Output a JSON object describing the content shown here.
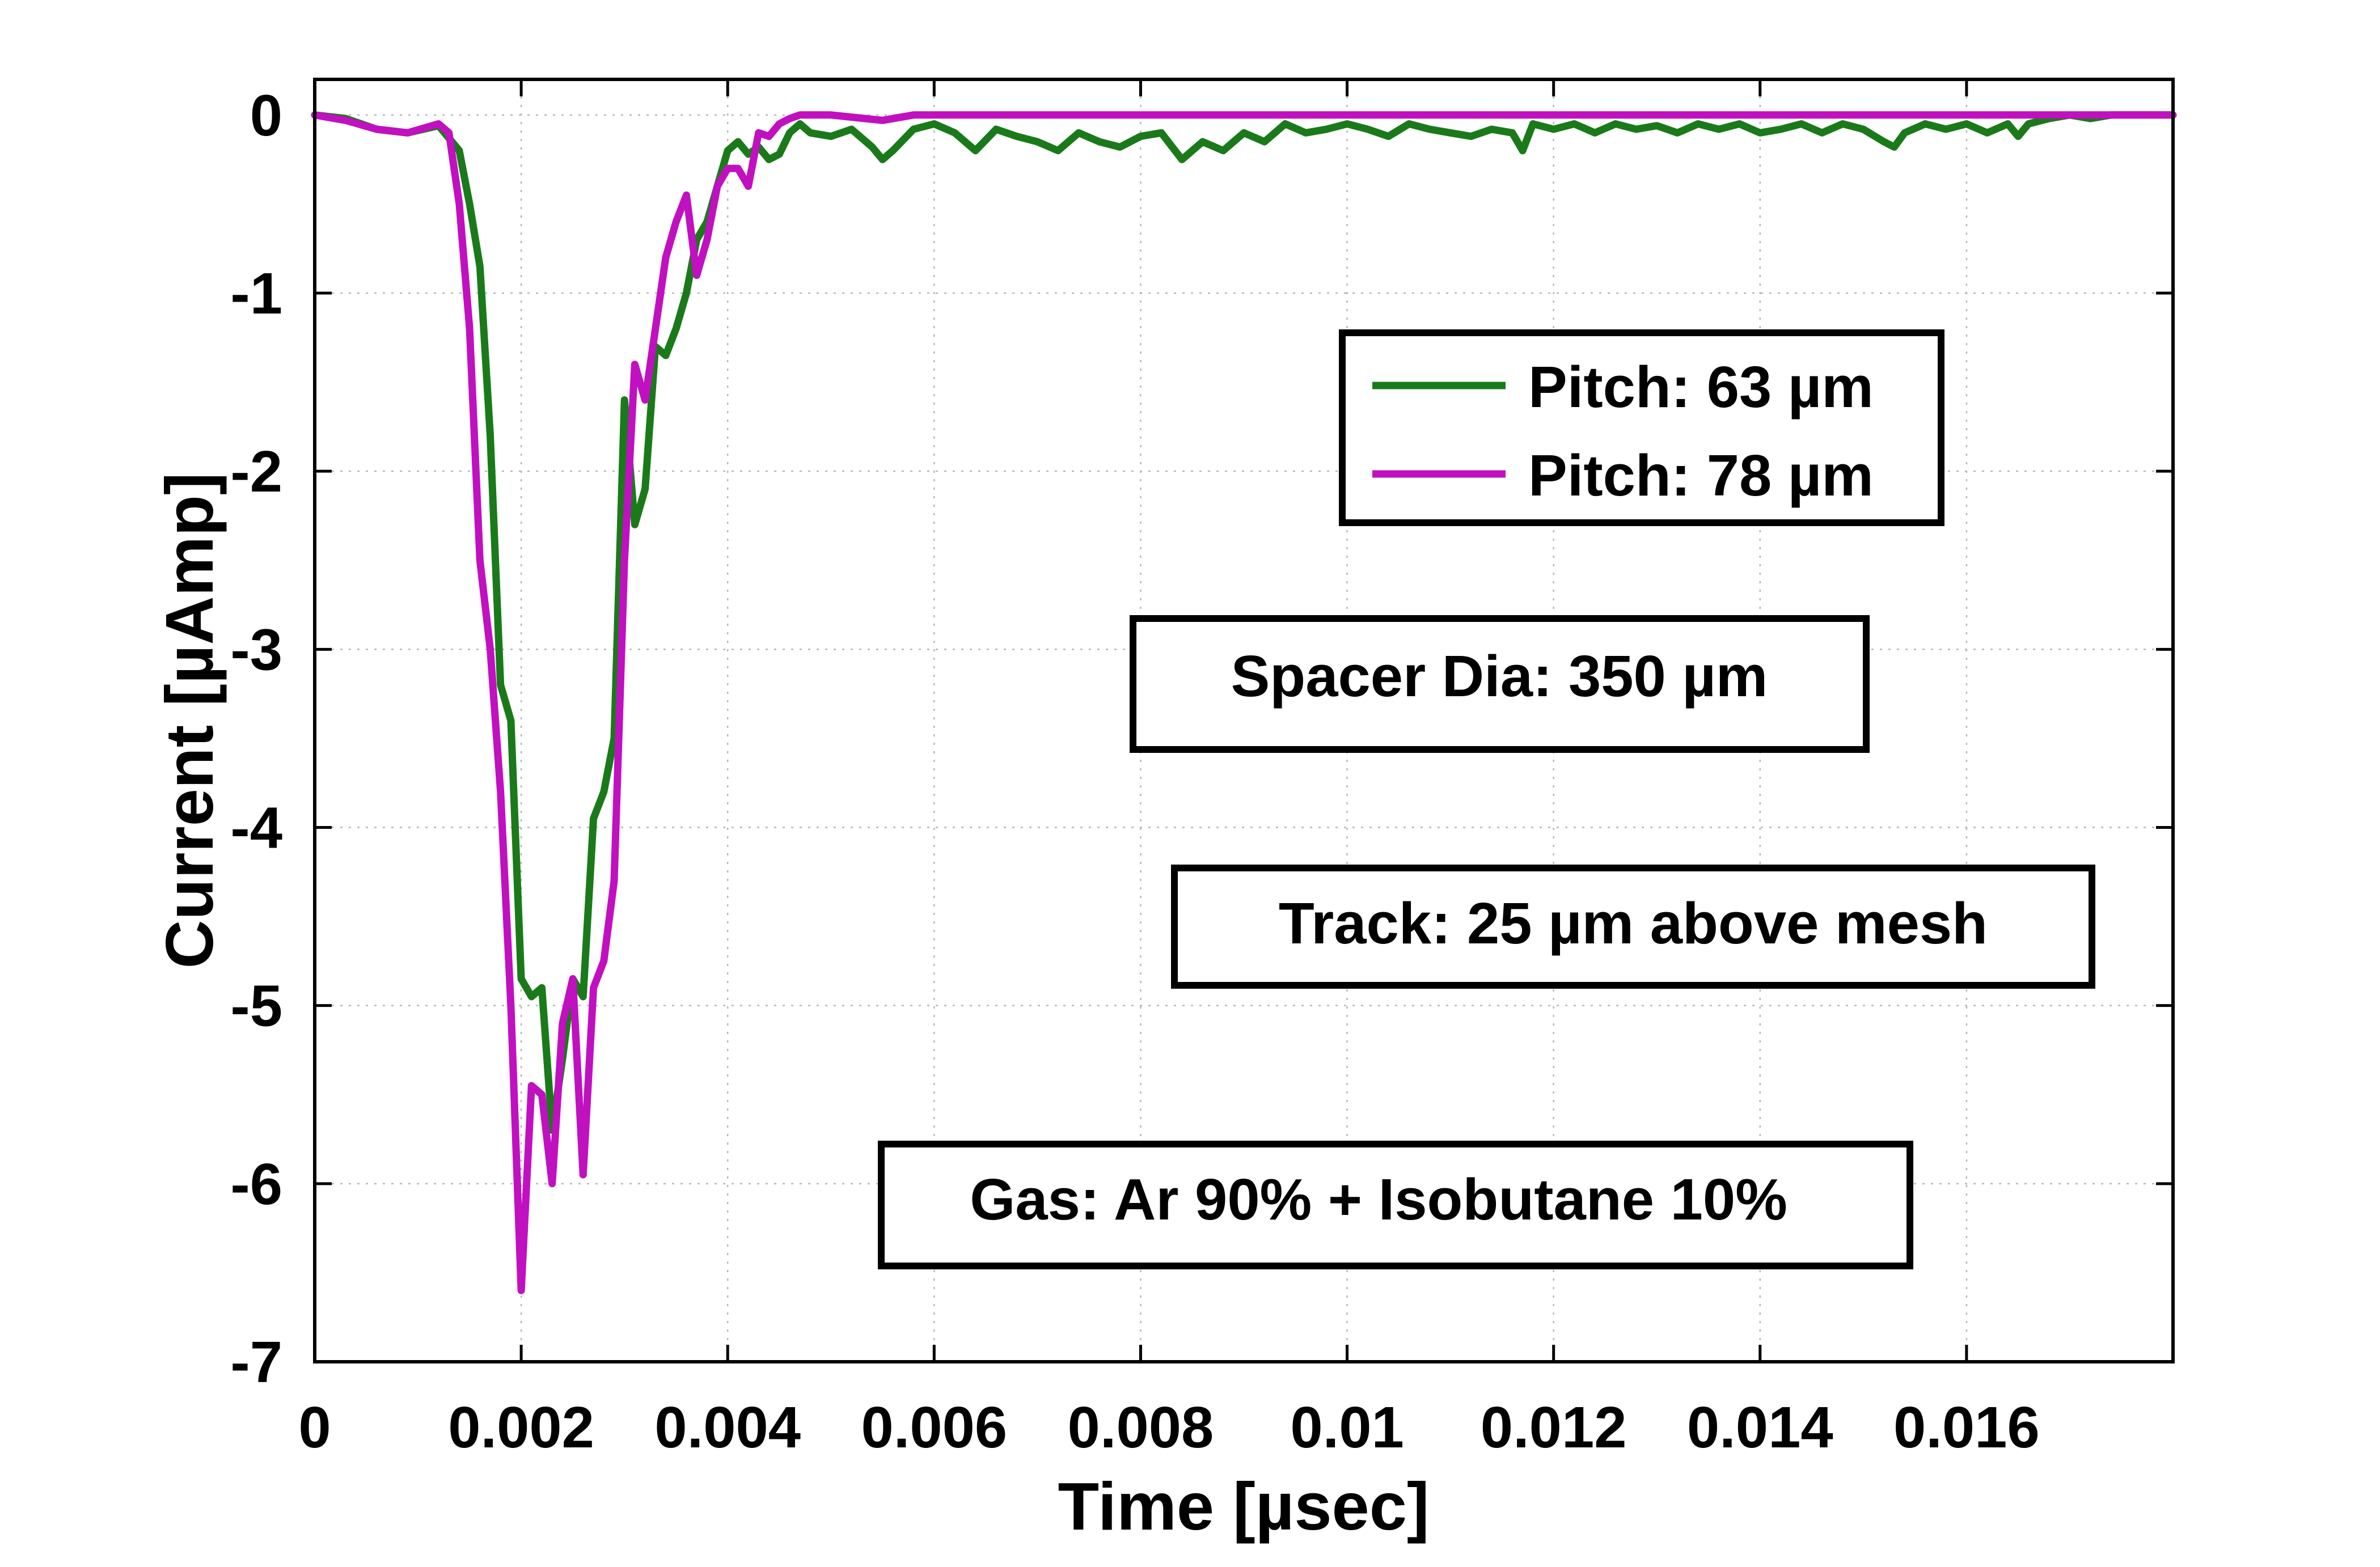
{
  "chart_data": {
    "type": "line",
    "title": "",
    "xlabel": "Time [µsec]",
    "ylabel": "Current [µAmp]",
    "xlim": [
      0,
      0.018
    ],
    "ylim": [
      -7,
      0.2
    ],
    "xticks": [
      0,
      0.002,
      0.004,
      0.006,
      0.008,
      0.01,
      0.012,
      0.014,
      0.016
    ],
    "xtick_labels": [
      "0",
      "0.002",
      "0.004",
      "0.006",
      "0.008",
      "0.01",
      "0.012",
      "0.014",
      "0.016"
    ],
    "yticks": [
      0,
      -1,
      -2,
      -3,
      -4,
      -5,
      -6,
      -7
    ],
    "ytick_labels": [
      "0",
      "-1",
      "-2",
      "-3",
      "-4",
      "-5",
      "-6",
      "-7"
    ],
    "grid": true,
    "legend_position": "upper-right",
    "series": [
      {
        "name": "Pitch: 63 µm",
        "color": "#1a7a1a",
        "x": [
          0,
          0.0003,
          0.0006,
          0.0009,
          0.0012,
          0.0014,
          0.0015,
          0.0016,
          0.0017,
          0.0018,
          0.0019,
          0.002,
          0.0021,
          0.0022,
          0.0023,
          0.0024,
          0.0025,
          0.0026,
          0.0027,
          0.0028,
          0.0029,
          0.003,
          0.0031,
          0.0032,
          0.0033,
          0.0034,
          0.0035,
          0.0036,
          0.0037,
          0.0038,
          0.0039,
          0.004,
          0.0041,
          0.0042,
          0.0043,
          0.0044,
          0.0045,
          0.0046,
          0.0047,
          0.0048,
          0.005,
          0.0052,
          0.0054,
          0.0055,
          0.0056,
          0.0058,
          0.006,
          0.0062,
          0.0064,
          0.0066,
          0.0068,
          0.007,
          0.0072,
          0.0074,
          0.0076,
          0.0078,
          0.008,
          0.0082,
          0.0084,
          0.0086,
          0.0088,
          0.009,
          0.0092,
          0.0094,
          0.0096,
          0.0098,
          0.01,
          0.0102,
          0.0104,
          0.0106,
          0.0108,
          0.011,
          0.0112,
          0.0114,
          0.0116,
          0.0117,
          0.0118,
          0.012,
          0.0122,
          0.0124,
          0.0126,
          0.0128,
          0.013,
          0.0132,
          0.0134,
          0.0136,
          0.0138,
          0.014,
          0.0142,
          0.0144,
          0.0146,
          0.0148,
          0.015,
          0.0152,
          0.0153,
          0.0154,
          0.0156,
          0.0158,
          0.016,
          0.0162,
          0.0164,
          0.0165,
          0.0166,
          0.0168,
          0.017,
          0.0172,
          0.0174,
          0.0176,
          0.0178,
          0.018
        ],
        "y": [
          0,
          -0.02,
          -0.08,
          -0.1,
          -0.06,
          -0.2,
          -0.5,
          -0.85,
          -1.8,
          -3.2,
          -3.4,
          -4.85,
          -4.95,
          -4.9,
          -5.7,
          -5.3,
          -4.85,
          -4.95,
          -3.95,
          -3.8,
          -3.5,
          -1.6,
          -2.3,
          -2.1,
          -1.3,
          -1.35,
          -1.2,
          -1.0,
          -0.7,
          -0.6,
          -0.4,
          -0.2,
          -0.15,
          -0.22,
          -0.18,
          -0.25,
          -0.22,
          -0.1,
          -0.05,
          -0.1,
          -0.12,
          -0.08,
          -0.18,
          -0.25,
          -0.2,
          -0.08,
          -0.05,
          -0.1,
          -0.2,
          -0.08,
          -0.12,
          -0.15,
          -0.2,
          -0.1,
          -0.15,
          -0.18,
          -0.12,
          -0.1,
          -0.25,
          -0.15,
          -0.2,
          -0.1,
          -0.15,
          -0.05,
          -0.1,
          -0.08,
          -0.05,
          -0.08,
          -0.12,
          -0.05,
          -0.08,
          -0.1,
          -0.12,
          -0.08,
          -0.1,
          -0.2,
          -0.05,
          -0.08,
          -0.05,
          -0.1,
          -0.05,
          -0.08,
          -0.06,
          -0.1,
          -0.05,
          -0.08,
          -0.05,
          -0.1,
          -0.08,
          -0.05,
          -0.1,
          -0.05,
          -0.08,
          -0.15,
          -0.18,
          -0.1,
          -0.05,
          -0.08,
          -0.05,
          -0.1,
          -0.05,
          -0.12,
          -0.05,
          -0.02,
          0,
          -0.02,
          0,
          0,
          0,
          0
        ]
      },
      {
        "name": "Pitch: 78 µm",
        "color": "#c010c0",
        "x": [
          0,
          0.0003,
          0.0006,
          0.0009,
          0.0012,
          0.0013,
          0.0014,
          0.0015,
          0.0016,
          0.0017,
          0.0018,
          0.0019,
          0.002,
          0.0021,
          0.0022,
          0.0023,
          0.0024,
          0.0025,
          0.0026,
          0.0027,
          0.0028,
          0.0029,
          0.003,
          0.0031,
          0.0032,
          0.0033,
          0.0034,
          0.0035,
          0.0036,
          0.0037,
          0.0038,
          0.0039,
          0.004,
          0.0041,
          0.0042,
          0.0043,
          0.0044,
          0.0045,
          0.0046,
          0.0047,
          0.0048,
          0.005,
          0.0055,
          0.0058,
          0.006,
          0.007,
          0.008,
          0.009,
          0.01,
          0.011,
          0.012,
          0.013,
          0.014,
          0.015,
          0.016,
          0.017,
          0.018
        ],
        "y": [
          0,
          -0.03,
          -0.08,
          -0.1,
          -0.05,
          -0.1,
          -0.5,
          -1.2,
          -2.5,
          -3.0,
          -3.8,
          -5.0,
          -6.6,
          -5.45,
          -5.5,
          -6.0,
          -5.1,
          -4.85,
          -5.95,
          -4.9,
          -4.75,
          -4.3,
          -2.5,
          -1.4,
          -1.6,
          -1.2,
          -0.8,
          -0.6,
          -0.45,
          -0.9,
          -0.7,
          -0.4,
          -0.3,
          -0.3,
          -0.4,
          -0.1,
          -0.12,
          -0.05,
          -0.02,
          0,
          0,
          0,
          -0.03,
          0,
          0,
          0,
          0,
          0,
          0,
          0,
          0,
          0,
          0,
          0,
          0,
          0,
          0
        ]
      }
    ],
    "annotations": [
      "Spacer Dia: 350 µm",
      "Track: 25 µm above mesh",
      "Gas: Ar 90% + Isobutane 10%"
    ]
  }
}
